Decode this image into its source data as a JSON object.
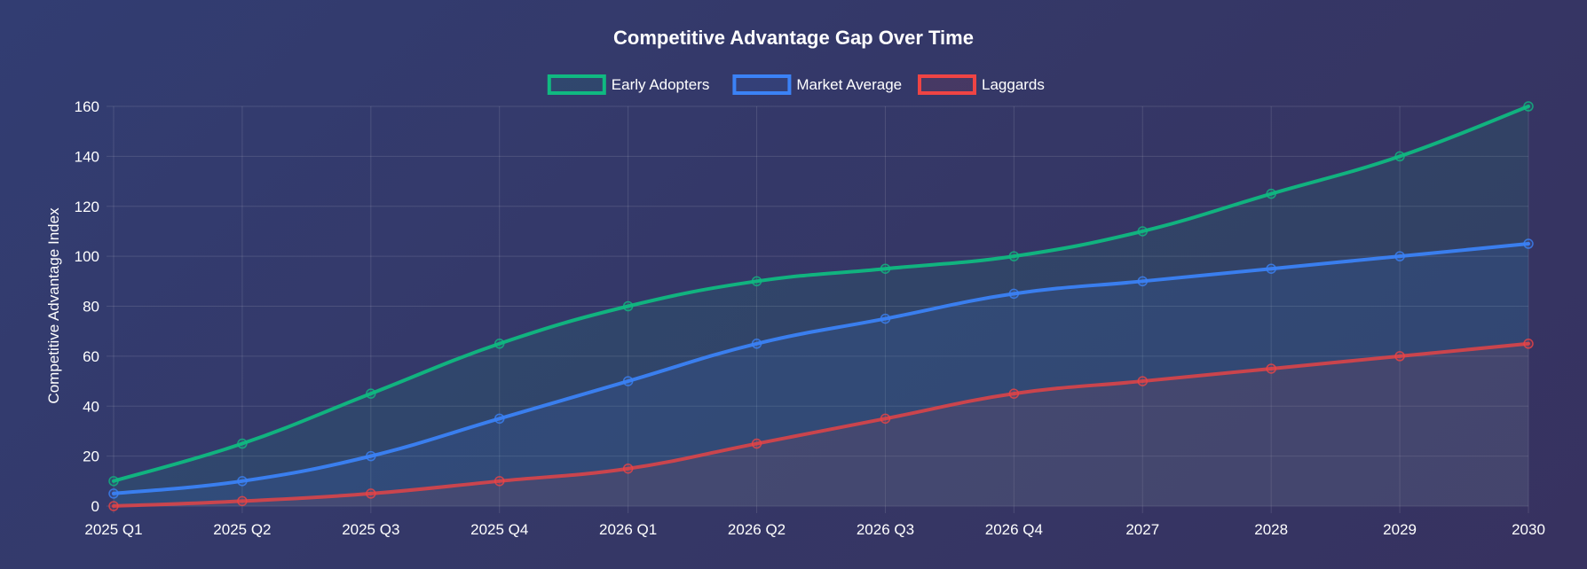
{
  "chart_data": {
    "type": "line",
    "title": "Competitive Advantage Gap Over Time",
    "xlabel": "",
    "ylabel": "Competitive Advantage Index",
    "ylim": [
      0,
      160
    ],
    "y_ticks": [
      0,
      20,
      40,
      60,
      80,
      100,
      120,
      140,
      160
    ],
    "grid": true,
    "legend_position": "top-center",
    "categories": [
      "2025 Q1",
      "2025 Q2",
      "2025 Q3",
      "2025 Q4",
      "2026 Q1",
      "2026 Q2",
      "2026 Q3",
      "2026 Q4",
      "2027",
      "2028",
      "2029",
      "2030"
    ],
    "series": [
      {
        "name": "Early Adopters",
        "color": "#10b981",
        "fill": true,
        "values": [
          10,
          25,
          45,
          65,
          80,
          90,
          95,
          100,
          110,
          125,
          140,
          160
        ]
      },
      {
        "name": "Market Average",
        "color": "#3b82f6",
        "fill": true,
        "values": [
          5,
          10,
          20,
          35,
          50,
          65,
          75,
          85,
          90,
          95,
          100,
          105
        ]
      },
      {
        "name": "Laggards",
        "color": "#ef4444",
        "fill": true,
        "values": [
          0,
          2,
          5,
          10,
          15,
          25,
          35,
          45,
          50,
          55,
          60,
          65
        ]
      }
    ]
  }
}
